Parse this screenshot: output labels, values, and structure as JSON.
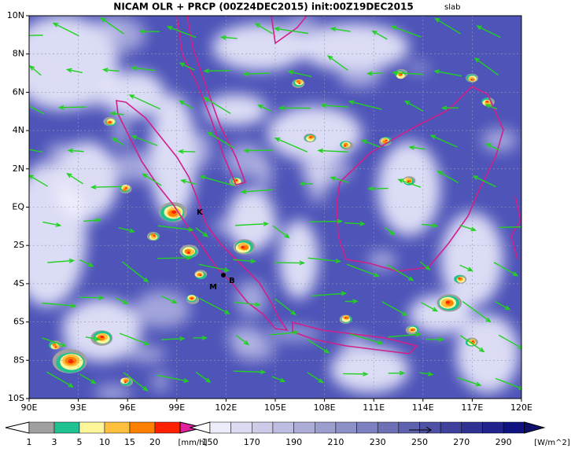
{
  "header": {
    "title": "NICAM OLR + PRCP (00Z24DEC2015) init:00Z19DEC2015",
    "tag": "slab"
  },
  "map": {
    "lon_labels": [
      "90E",
      "93E",
      "96E",
      "99E",
      "102E",
      "105E",
      "108E",
      "111E",
      "114E",
      "117E",
      "120E"
    ],
    "lat_labels": [
      "10N",
      "8N",
      "6N",
      "4N",
      "2N",
      "EQ",
      "2S",
      "4S",
      "6S",
      "8S",
      "10S"
    ],
    "markers": [
      "K",
      "B",
      "M"
    ]
  },
  "precip_colorbar": {
    "labels": [
      "1",
      "3",
      "5",
      "10",
      "15",
      "20"
    ],
    "unit": "[mm/h]"
  },
  "olr_colorbar": {
    "labels": [
      "150",
      "170",
      "190",
      "210",
      "230",
      "250",
      "270",
      "290"
    ],
    "unit": "[W/m^2]"
  }
}
